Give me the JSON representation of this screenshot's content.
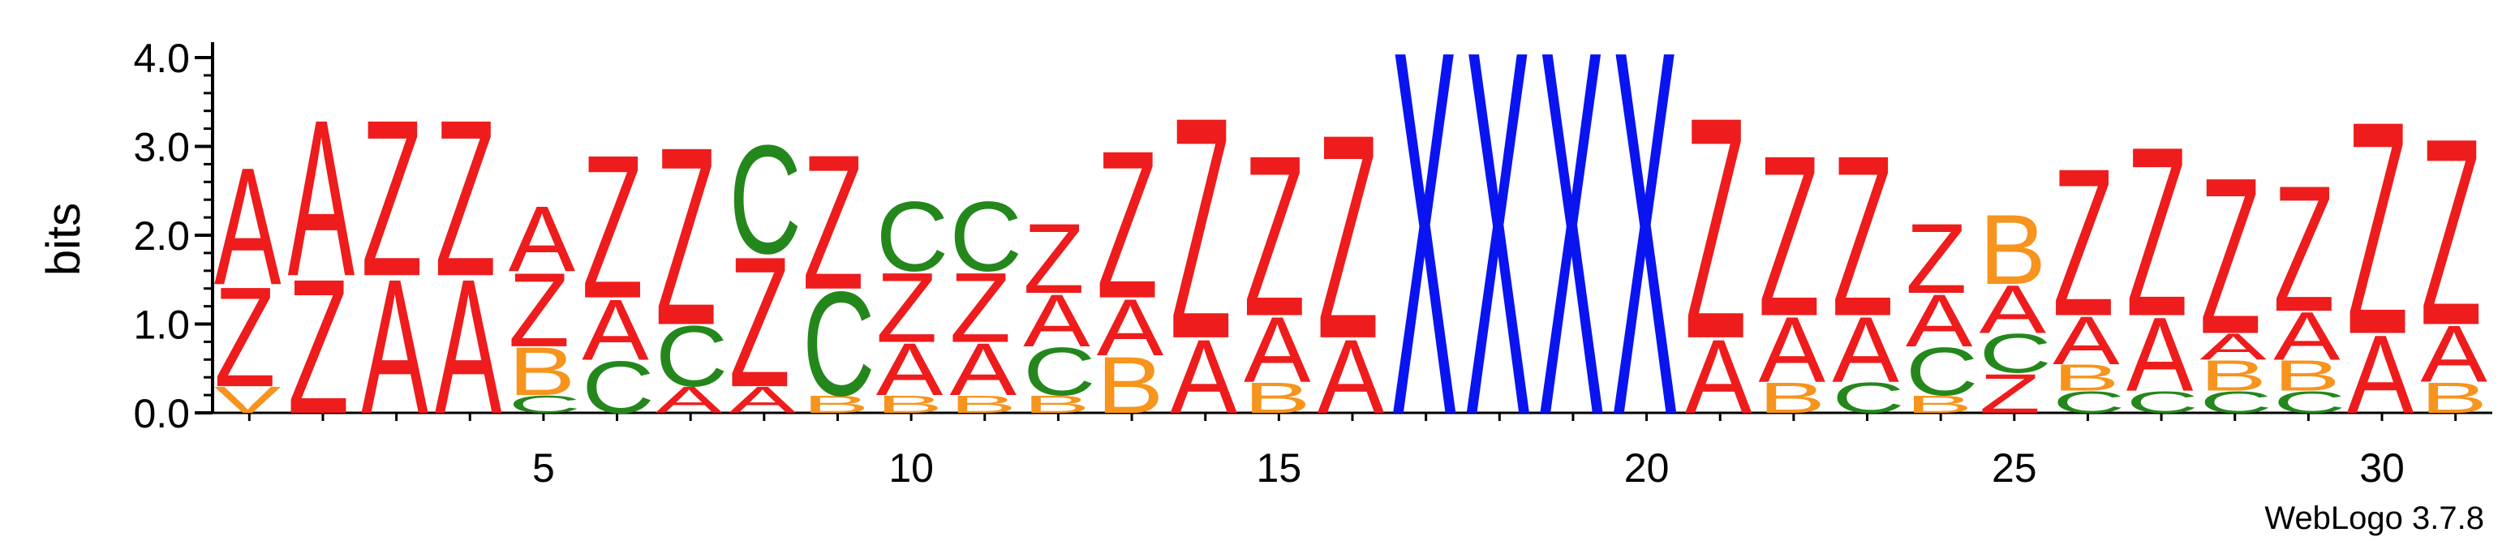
{
  "chart_data": {
    "type": "sequence-logo",
    "ylabel": "bits",
    "ylim": [
      0,
      4.0
    ],
    "yticks": [
      "0.0",
      "1.0",
      "2.0",
      "3.0",
      "4.0"
    ],
    "xticks": [
      5,
      10,
      15,
      20,
      25,
      30
    ],
    "credit": "WebLogo 3.7.8",
    "colors": {
      "A": "#ee1c1c",
      "Z": "#ee1c1c",
      "B": "#f7941d",
      "C": "#24871c",
      "V": "#f7941d",
      "X": "#0a14f0"
    },
    "positions": [
      {
        "pos": 1,
        "stack": [
          {
            "letter": "V",
            "bits": 0.3
          },
          {
            "letter": "Z",
            "bits": 1.15
          },
          {
            "letter": "A",
            "bits": 1.35
          }
        ]
      },
      {
        "pos": 2,
        "stack": [
          {
            "letter": "Z",
            "bits": 1.55
          },
          {
            "letter": "A",
            "bits": 1.8
          }
        ]
      },
      {
        "pos": 3,
        "stack": [
          {
            "letter": "A",
            "bits": 1.55
          },
          {
            "letter": "Z",
            "bits": 1.8
          }
        ]
      },
      {
        "pos": 4,
        "stack": [
          {
            "letter": "A",
            "bits": 1.55
          },
          {
            "letter": "Z",
            "bits": 1.8
          }
        ]
      },
      {
        "pos": 5,
        "stack": [
          {
            "letter": "C",
            "bits": 0.2
          },
          {
            "letter": "B",
            "bits": 0.55
          },
          {
            "letter": "Z",
            "bits": 0.85
          },
          {
            "letter": "A",
            "bits": 0.75
          }
        ]
      },
      {
        "pos": 6,
        "stack": [
          {
            "letter": "C",
            "bits": 0.6
          },
          {
            "letter": "A",
            "bits": 0.7
          },
          {
            "letter": "Z",
            "bits": 1.65
          }
        ]
      },
      {
        "pos": 7,
        "stack": [
          {
            "letter": "A",
            "bits": 0.3
          },
          {
            "letter": "C",
            "bits": 0.7
          },
          {
            "letter": "Z",
            "bits": 2.05
          }
        ]
      },
      {
        "pos": 8,
        "stack": [
          {
            "letter": "A",
            "bits": 0.3
          },
          {
            "letter": "Z",
            "bits": 1.5
          },
          {
            "letter": "C",
            "bits": 1.25
          }
        ]
      },
      {
        "pos": 9,
        "stack": [
          {
            "letter": "B",
            "bits": 0.2
          },
          {
            "letter": "C",
            "bits": 1.2
          },
          {
            "letter": "Z",
            "bits": 1.55
          }
        ]
      },
      {
        "pos": 10,
        "stack": [
          {
            "letter": "B",
            "bits": 0.2
          },
          {
            "letter": "A",
            "bits": 0.6
          },
          {
            "letter": "Z",
            "bits": 0.8
          },
          {
            "letter": "C",
            "bits": 0.8
          }
        ]
      },
      {
        "pos": 11,
        "stack": [
          {
            "letter": "B",
            "bits": 0.2
          },
          {
            "letter": "A",
            "bits": 0.6
          },
          {
            "letter": "Z",
            "bits": 0.8
          },
          {
            "letter": "C",
            "bits": 0.8
          }
        ]
      },
      {
        "pos": 12,
        "stack": [
          {
            "letter": "B",
            "bits": 0.2
          },
          {
            "letter": "C",
            "bits": 0.55
          },
          {
            "letter": "A",
            "bits": 0.6
          },
          {
            "letter": "Z",
            "bits": 0.8
          }
        ]
      },
      {
        "pos": 13,
        "stack": [
          {
            "letter": "B",
            "bits": 0.65
          },
          {
            "letter": "A",
            "bits": 0.65
          },
          {
            "letter": "Z",
            "bits": 1.7
          }
        ]
      },
      {
        "pos": 14,
        "stack": [
          {
            "letter": "A",
            "bits": 0.85
          },
          {
            "letter": "Z",
            "bits": 2.55
          }
        ]
      },
      {
        "pos": 15,
        "stack": [
          {
            "letter": "B",
            "bits": 0.35
          },
          {
            "letter": "A",
            "bits": 0.75
          },
          {
            "letter": "Z",
            "bits": 1.85
          }
        ]
      },
      {
        "pos": 16,
        "stack": [
          {
            "letter": "A",
            "bits": 0.85
          },
          {
            "letter": "Z",
            "bits": 2.35
          }
        ]
      },
      {
        "pos": 17,
        "stack": [
          {
            "letter": "X",
            "bits": 4.2
          }
        ]
      },
      {
        "pos": 18,
        "stack": [
          {
            "letter": "X",
            "bits": 4.2
          }
        ]
      },
      {
        "pos": 19,
        "stack": [
          {
            "letter": "X",
            "bits": 4.2
          }
        ]
      },
      {
        "pos": 20,
        "stack": [
          {
            "letter": "X",
            "bits": 4.2
          }
        ]
      },
      {
        "pos": 21,
        "stack": [
          {
            "letter": "A",
            "bits": 0.85
          },
          {
            "letter": "Z",
            "bits": 2.55
          }
        ]
      },
      {
        "pos": 22,
        "stack": [
          {
            "letter": "B",
            "bits": 0.35
          },
          {
            "letter": "A",
            "bits": 0.75
          },
          {
            "letter": "Z",
            "bits": 1.85
          }
        ]
      },
      {
        "pos": 23,
        "stack": [
          {
            "letter": "C",
            "bits": 0.35
          },
          {
            "letter": "A",
            "bits": 0.75
          },
          {
            "letter": "Z",
            "bits": 1.85
          }
        ]
      },
      {
        "pos": 24,
        "stack": [
          {
            "letter": "B",
            "bits": 0.2
          },
          {
            "letter": "C",
            "bits": 0.55
          },
          {
            "letter": "A",
            "bits": 0.6
          },
          {
            "letter": "Z",
            "bits": 0.8
          }
        ]
      },
      {
        "pos": 25,
        "stack": [
          {
            "letter": "Z",
            "bits": 0.45
          },
          {
            "letter": "C",
            "bits": 0.45
          },
          {
            "letter": "A",
            "bits": 0.55
          },
          {
            "letter": "B",
            "bits": 0.8
          }
        ]
      },
      {
        "pos": 26,
        "stack": [
          {
            "letter": "C",
            "bits": 0.25
          },
          {
            "letter": "B",
            "bits": 0.3
          },
          {
            "letter": "A",
            "bits": 0.55
          },
          {
            "letter": "Z",
            "bits": 1.7
          }
        ]
      },
      {
        "pos": 27,
        "stack": [
          {
            "letter": "C",
            "bits": 0.25
          },
          {
            "letter": "A",
            "bits": 0.85
          },
          {
            "letter": "Z",
            "bits": 1.95
          }
        ]
      },
      {
        "pos": 28,
        "stack": [
          {
            "letter": "C",
            "bits": 0.25
          },
          {
            "letter": "B",
            "bits": 0.35
          },
          {
            "letter": "A",
            "bits": 0.3
          },
          {
            "letter": "Z",
            "bits": 1.8
          }
        ]
      },
      {
        "pos": 29,
        "stack": [
          {
            "letter": "C",
            "bits": 0.25
          },
          {
            "letter": "B",
            "bits": 0.35
          },
          {
            "letter": "A",
            "bits": 0.55
          },
          {
            "letter": "Z",
            "bits": 1.45
          }
        ]
      },
      {
        "pos": 30,
        "stack": [
          {
            "letter": "A",
            "bits": 0.9
          },
          {
            "letter": "Z",
            "bits": 2.45
          }
        ]
      },
      {
        "pos": 31,
        "stack": [
          {
            "letter": "B",
            "bits": 0.35
          },
          {
            "letter": "A",
            "bits": 0.65
          },
          {
            "letter": "Z",
            "bits": 2.15
          }
        ]
      }
    ]
  }
}
